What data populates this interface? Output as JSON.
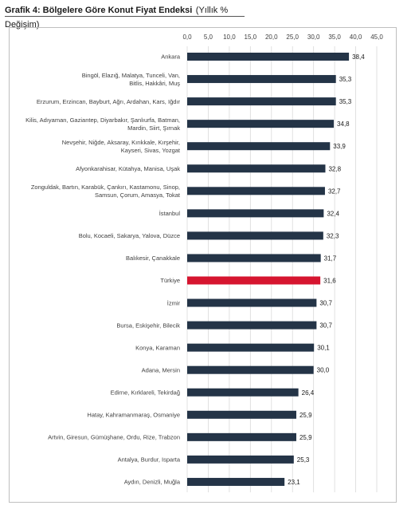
{
  "title": {
    "bold": "Grafik 4: Bölgelere Göre Konut Fiyat Endeksi",
    "sub": "(Yıllık % Değişim)"
  },
  "colors": {
    "bar": "#243447",
    "highlight": "#d6152f",
    "grid": "#d9d9d9"
  },
  "chart_data": {
    "type": "bar",
    "orientation": "horizontal",
    "xlim": [
      0,
      45
    ],
    "ticks": [
      "0,0",
      "5,0",
      "10,0",
      "15,0",
      "20,0",
      "25,0",
      "30,0",
      "35,0",
      "40,0",
      "45,0"
    ],
    "tick_values": [
      0,
      5,
      10,
      15,
      20,
      25,
      30,
      35,
      40,
      45
    ],
    "grid": true,
    "categories": [
      [
        "Ankara"
      ],
      [
        "Bingöl, Elazığ, Malatya, Tunceli, Van,",
        "Bitlis, Hakkâri, Muş"
      ],
      [
        "Erzurum, Erzincan, Bayburt, Ağrı, Ardahan, Kars, Iğdır"
      ],
      [
        "Kilis, Adıyaman, Gaziantep, Diyarbakır, Şanlıurfa, Batman,",
        "Mardin, Siirt, Şırnak"
      ],
      [
        "Nevşehir, Niğde, Aksaray, Kırıkkale, Kırşehir,",
        "Kayseri, Sivas, Yozgat"
      ],
      [
        "Afyonkarahisar, Kütahya, Manisa, Uşak"
      ],
      [
        "Zonguldak, Bartın, Karabük, Çankırı, Kastamonu, Sinop,",
        "Samsun, Çorum, Amasya, Tokat"
      ],
      [
        "İstanbul"
      ],
      [
        "Bolu, Kocaeli, Sakarya, Yalova, Düzce"
      ],
      [
        "Balıkesir, Çanakkale"
      ],
      [
        "Türkiye"
      ],
      [
        "İzmir"
      ],
      [
        "Bursa, Eskişehir, Bilecik"
      ],
      [
        "Konya, Karaman"
      ],
      [
        "Adana, Mersin"
      ],
      [
        "Edirne, Kırklareli, Tekirdağ"
      ],
      [
        "Hatay, Kahramanmaraş, Osmaniye"
      ],
      [
        "Artvin, Giresun, Gümüşhane, Ordu, Rize, Trabzon"
      ],
      [
        "Antalya, Burdur, Isparta"
      ],
      [
        "Aydın, Denizli, Muğla"
      ]
    ],
    "values": [
      38.4,
      35.3,
      35.3,
      34.8,
      33.9,
      32.8,
      32.7,
      32.4,
      32.3,
      31.7,
      31.6,
      30.7,
      30.7,
      30.1,
      30.0,
      26.4,
      25.9,
      25.9,
      25.3,
      23.1
    ],
    "value_labels": [
      "38,4",
      "35,3",
      "35,3",
      "34,8",
      "33,9",
      "32,8",
      "32,7",
      "32,4",
      "32,3",
      "31,7",
      "31,6",
      "30,7",
      "30,7",
      "30,1",
      "30,0",
      "26,4",
      "25,9",
      "25,9",
      "25,3",
      "23,1"
    ],
    "highlight_category": "Türkiye"
  }
}
